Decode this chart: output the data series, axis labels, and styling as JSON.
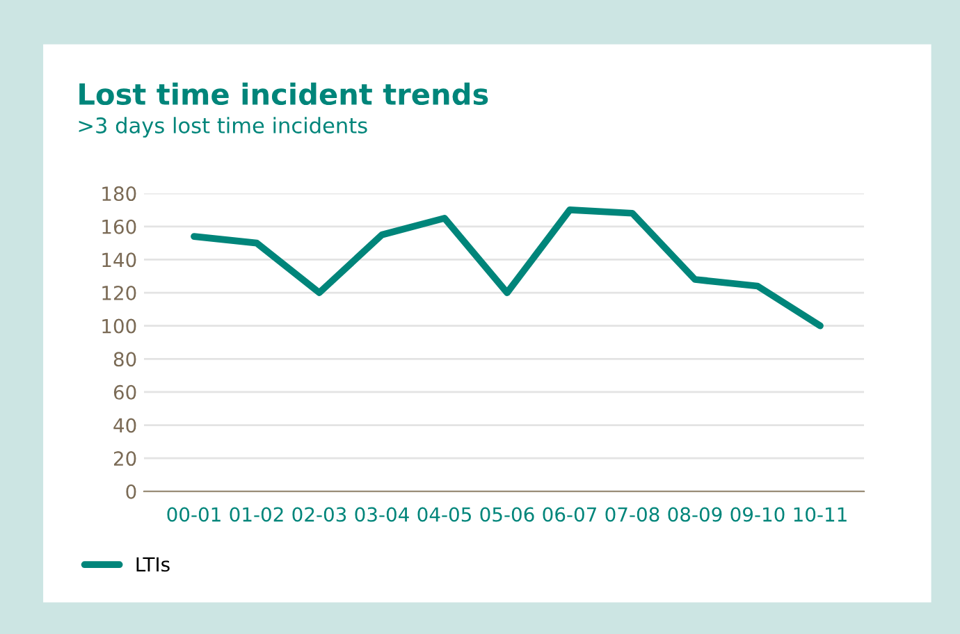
{
  "chart_data": {
    "type": "line",
    "title": "Lost time incident trends",
    "subtitle": ">3 days lost time incidents",
    "categories": [
      "00-01",
      "01-02",
      "02-03",
      "03-04",
      "04-05",
      "05-06",
      "06-07",
      "07-08",
      "08-09",
      "09-10",
      "10-11"
    ],
    "series": [
      {
        "name": "LTIs",
        "color": "#00857a",
        "values": [
          154,
          150,
          120,
          155,
          165,
          120,
          170,
          168,
          128,
          124,
          100
        ]
      }
    ],
    "ylim": [
      0,
      180
    ],
    "yticks": [
      0,
      20,
      40,
      60,
      80,
      100,
      120,
      140,
      160,
      180
    ],
    "grid": "y",
    "legend": "bottom left",
    "marker": "none",
    "line_style": "solid"
  }
}
